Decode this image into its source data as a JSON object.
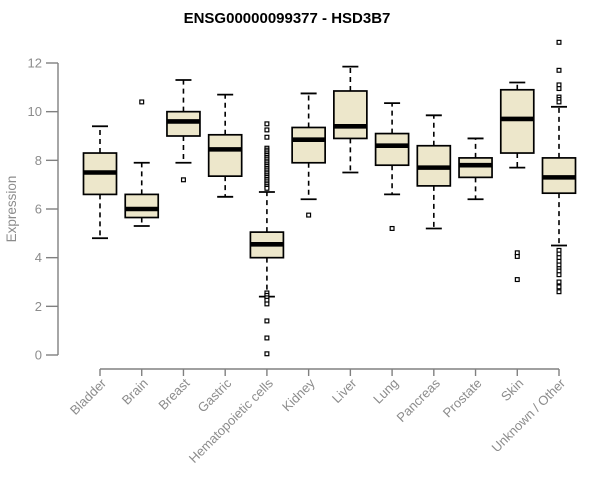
{
  "chart_data": {
    "type": "boxplot",
    "title": "ENSG00000099377 - HSD3B7",
    "xlabel": "",
    "ylabel": "Expression",
    "ylim": [
      0,
      12
    ],
    "yticks": [
      0,
      2,
      4,
      6,
      8,
      10,
      12
    ],
    "grid": false,
    "legend": "none",
    "categories": [
      "Bladder",
      "Brain",
      "Breast",
      "Gastric",
      "Hematopoietic cells",
      "Kidney",
      "Liver",
      "Lung",
      "Pancreas",
      "Prostate",
      "Skin",
      "Unknown / Other"
    ],
    "series": [
      {
        "name": "Bladder",
        "whisker_low": 4.8,
        "q1": 6.6,
        "median": 7.5,
        "q3": 8.3,
        "whisker_high": 9.4,
        "outliers": []
      },
      {
        "name": "Brain",
        "whisker_low": 5.3,
        "q1": 5.65,
        "median": 6.0,
        "q3": 6.6,
        "whisker_high": 7.9,
        "outliers": [
          10.4
        ]
      },
      {
        "name": "Breast",
        "whisker_low": 7.9,
        "q1": 9.0,
        "median": 9.6,
        "q3": 10.0,
        "whisker_high": 11.3,
        "outliers": [
          7.2
        ]
      },
      {
        "name": "Gastric",
        "whisker_low": 6.5,
        "q1": 7.35,
        "median": 8.45,
        "q3": 9.05,
        "whisker_high": 10.7,
        "outliers": []
      },
      {
        "name": "Hematopoietic cells",
        "whisker_low": 2.4,
        "q1": 4.0,
        "median": 4.55,
        "q3": 5.05,
        "whisker_high": 6.7,
        "outliers": [
          9.5,
          9.25,
          8.95,
          8.5,
          8.42,
          8.35,
          8.27,
          8.2,
          8.12,
          8.05,
          7.97,
          7.9,
          7.82,
          7.75,
          7.67,
          7.6,
          7.52,
          7.45,
          7.37,
          7.3,
          7.22,
          7.15,
          7.07,
          7.0,
          6.92,
          6.85,
          2.55,
          2.45,
          2.35,
          2.25,
          2.1,
          1.4,
          0.7,
          0.05
        ]
      },
      {
        "name": "Kidney",
        "whisker_low": 6.4,
        "q1": 7.9,
        "median": 8.85,
        "q3": 9.35,
        "whisker_high": 10.75,
        "outliers": [
          5.75
        ]
      },
      {
        "name": "Liver",
        "whisker_low": 7.5,
        "q1": 8.9,
        "median": 9.4,
        "q3": 10.85,
        "whisker_high": 11.85,
        "outliers": []
      },
      {
        "name": "Lung",
        "whisker_low": 6.6,
        "q1": 7.8,
        "median": 8.6,
        "q3": 9.1,
        "whisker_high": 10.35,
        "outliers": [
          5.2
        ]
      },
      {
        "name": "Pancreas",
        "whisker_low": 5.2,
        "q1": 6.95,
        "median": 7.7,
        "q3": 8.6,
        "whisker_high": 9.85,
        "outliers": []
      },
      {
        "name": "Prostate",
        "whisker_low": 6.4,
        "q1": 7.3,
        "median": 7.8,
        "q3": 8.1,
        "whisker_high": 8.9,
        "outliers": []
      },
      {
        "name": "Skin",
        "whisker_low": 7.7,
        "q1": 8.3,
        "median": 9.7,
        "q3": 10.9,
        "whisker_high": 11.2,
        "outliers": [
          4.2,
          4.05,
          3.1
        ]
      },
      {
        "name": "Unknown / Other",
        "whisker_low": 4.5,
        "q1": 6.65,
        "median": 7.3,
        "q3": 8.1,
        "whisker_high": 10.2,
        "outliers": [
          12.85,
          11.7,
          11.1,
          10.95,
          10.6,
          10.5,
          10.4,
          4.3,
          4.15,
          4.0,
          3.85,
          3.7,
          3.55,
          3.45,
          3.3,
          3.0,
          2.8,
          2.6
        ]
      }
    ],
    "colors": {
      "background": "#FFFFFF",
      "box_fill": "#EDE7CB",
      "box_stroke": "#000000",
      "median": "#000000",
      "whisker": "#000000",
      "outlier_stroke": "#000000",
      "outlier_fill": "#FFFFFF",
      "axis": "#808080",
      "tick_label": "#8C8C8C",
      "title": "#000000"
    }
  }
}
